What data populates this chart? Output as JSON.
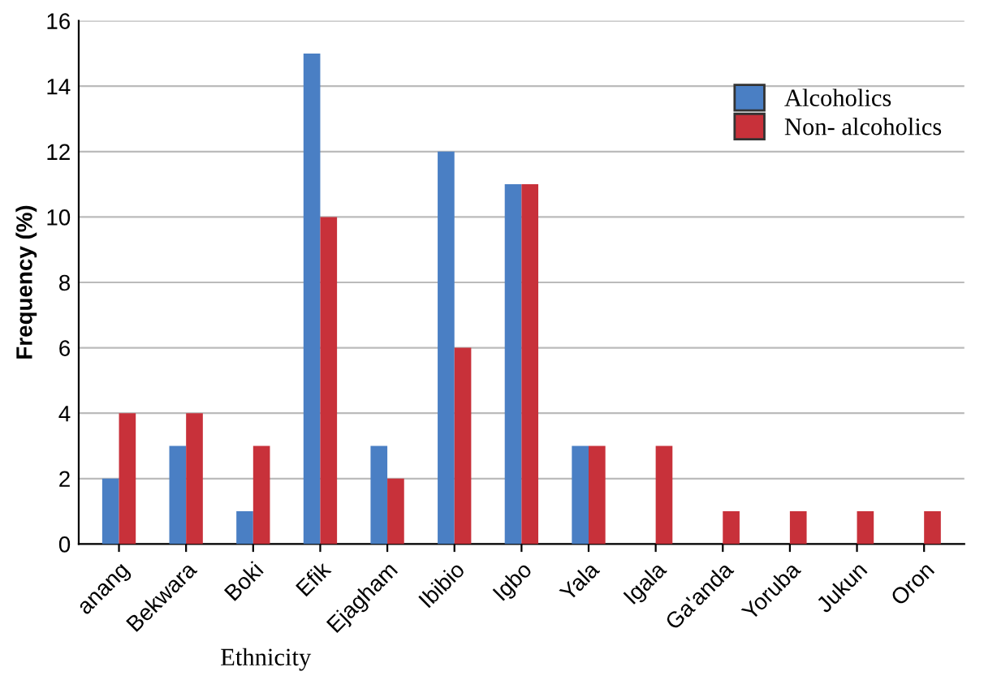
{
  "chart_data": {
    "type": "bar",
    "xlabel": "Ethnicity",
    "ylabel": "Frequency (%)",
    "categories": [
      "anang",
      "Bekwara",
      "Boki",
      "Efik",
      "Ejagham",
      "Ibibio",
      "Igbo",
      "Yala",
      "Igala",
      "Ga'anda",
      "Yoruba",
      "Jukun",
      "Oron"
    ],
    "series": [
      {
        "name": "Alcoholics",
        "color": "#4a7fc4",
        "values": [
          2,
          3,
          1,
          15,
          3,
          12,
          11,
          3,
          0,
          0,
          0,
          0,
          0
        ]
      },
      {
        "name": "Non- alcoholics",
        "color": "#c8313a",
        "values": [
          4,
          4,
          3,
          10,
          2,
          6,
          11,
          3,
          3,
          1,
          1,
          1,
          1
        ]
      }
    ],
    "ylim": [
      0,
      16
    ],
    "yticks": [
      0,
      2,
      4,
      6,
      8,
      10,
      12,
      14,
      16
    ],
    "grid": "y",
    "legend": "top right"
  }
}
